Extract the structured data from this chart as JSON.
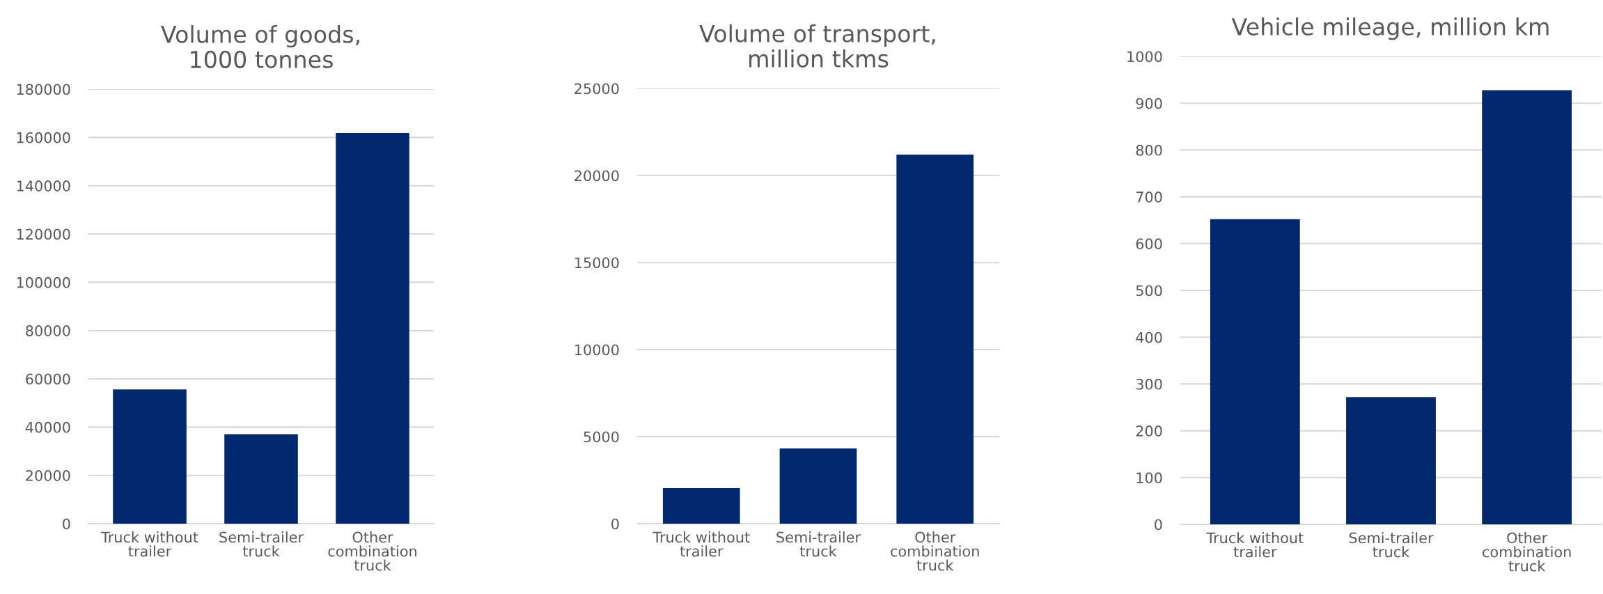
{
  "chart_data": [
    {
      "type": "bar",
      "title": "Volume of goods,\n1000 tonnes",
      "categories": [
        "Truck without\ntrailer",
        "Semi-trailer\ntruck",
        "Other\ncombination\ntruck"
      ],
      "values": [
        55600,
        37100,
        161800
      ],
      "color": "#00286e",
      "ylim": [
        0,
        180000
      ],
      "yticks": [
        0,
        20000,
        40000,
        60000,
        80000,
        100000,
        120000,
        140000,
        160000,
        180000
      ],
      "grid": "y"
    },
    {
      "type": "bar",
      "title": "Volume of transport,\nmillion tkms",
      "categories": [
        "Truck without\ntrailer",
        "Semi-trailer\ntruck",
        "Other\ncombination\ntruck"
      ],
      "values": [
        2040,
        4320,
        21200
      ],
      "color": "#00286e",
      "ylim": [
        0,
        25000
      ],
      "yticks": [
        0,
        5000,
        10000,
        15000,
        20000,
        25000
      ],
      "grid": "y"
    },
    {
      "type": "bar",
      "title": "Vehicle mileage, million km",
      "categories": [
        "Truck without\ntrailer",
        "Semi-trailer\ntruck",
        "Other\ncombination\ntruck"
      ],
      "values": [
        652,
        272,
        928
      ],
      "color": "#00286e",
      "ylim": [
        0,
        1000
      ],
      "yticks": [
        0,
        100,
        200,
        300,
        400,
        500,
        600,
        700,
        800,
        900,
        1000
      ],
      "grid": "y"
    }
  ]
}
